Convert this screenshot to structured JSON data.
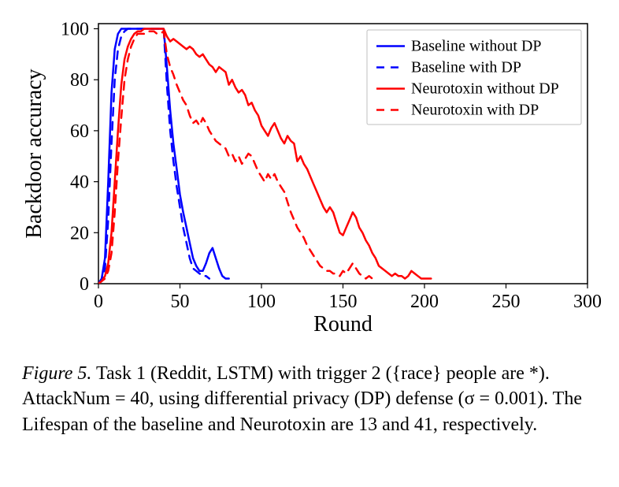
{
  "figure": {
    "type": "line",
    "background_color": "#ffffff",
    "plot_border_color": "#000000",
    "plot_border_width": 1.5,
    "x_axis": {
      "label": "Round",
      "label_fontsize": 28,
      "lim": [
        0,
        300
      ],
      "ticks": [
        0,
        50,
        100,
        150,
        200,
        250,
        300
      ],
      "tick_fontsize": 24
    },
    "y_axis": {
      "label": "Backdoor accuracy",
      "label_fontsize": 28,
      "lim": [
        0,
        102
      ],
      "ticks": [
        0,
        20,
        40,
        60,
        80,
        100
      ],
      "tick_fontsize": 24
    },
    "legend": {
      "position": "upper-right",
      "fontsize": 20,
      "border_color": "#bfbfbf",
      "items": [
        {
          "label": "Baseline without DP",
          "color": "#0000ff",
          "dash": "solid",
          "width": 2.5
        },
        {
          "label": "Baseline with DP",
          "color": "#0000ff",
          "dash": "dashed",
          "width": 2.5
        },
        {
          "label": "Neurotoxin without DP",
          "color": "#ff0000",
          "dash": "solid",
          "width": 2.5
        },
        {
          "label": "Neurotoxin with DP",
          "color": "#ff0000",
          "dash": "dashed",
          "width": 2.5
        }
      ]
    },
    "series": [
      {
        "name": "Baseline without DP",
        "color": "#0000ff",
        "dash": "solid",
        "width": 2.5,
        "points": [
          [
            0,
            0
          ],
          [
            2,
            2
          ],
          [
            4,
            10
          ],
          [
            6,
            40
          ],
          [
            8,
            75
          ],
          [
            10,
            92
          ],
          [
            12,
            98
          ],
          [
            14,
            100
          ],
          [
            16,
            100
          ],
          [
            18,
            100
          ],
          [
            20,
            100
          ],
          [
            22,
            100
          ],
          [
            24,
            100
          ],
          [
            26,
            100
          ],
          [
            28,
            100
          ],
          [
            30,
            100
          ],
          [
            32,
            100
          ],
          [
            34,
            100
          ],
          [
            36,
            100
          ],
          [
            38,
            100
          ],
          [
            40,
            100
          ],
          [
            42,
            85
          ],
          [
            44,
            68
          ],
          [
            46,
            55
          ],
          [
            48,
            45
          ],
          [
            50,
            35
          ],
          [
            52,
            28
          ],
          [
            54,
            22
          ],
          [
            56,
            16
          ],
          [
            58,
            10
          ],
          [
            60,
            7
          ],
          [
            62,
            5
          ],
          [
            64,
            5
          ],
          [
            66,
            8
          ],
          [
            68,
            12
          ],
          [
            70,
            14
          ],
          [
            72,
            10
          ],
          [
            74,
            6
          ],
          [
            76,
            3
          ],
          [
            78,
            2
          ],
          [
            80,
            2
          ]
        ]
      },
      {
        "name": "Baseline with DP",
        "color": "#0000ff",
        "dash": "dashed",
        "width": 2.5,
        "points": [
          [
            0,
            0
          ],
          [
            2,
            1
          ],
          [
            4,
            6
          ],
          [
            6,
            25
          ],
          [
            8,
            55
          ],
          [
            10,
            80
          ],
          [
            12,
            92
          ],
          [
            14,
            97
          ],
          [
            16,
            99
          ],
          [
            18,
            100
          ],
          [
            20,
            100
          ],
          [
            22,
            100
          ],
          [
            24,
            100
          ],
          [
            26,
            100
          ],
          [
            28,
            100
          ],
          [
            30,
            100
          ],
          [
            32,
            100
          ],
          [
            34,
            100
          ],
          [
            36,
            100
          ],
          [
            38,
            100
          ],
          [
            40,
            100
          ],
          [
            42,
            78
          ],
          [
            44,
            60
          ],
          [
            46,
            48
          ],
          [
            48,
            38
          ],
          [
            50,
            30
          ],
          [
            52,
            22
          ],
          [
            54,
            16
          ],
          [
            56,
            10
          ],
          [
            58,
            6
          ],
          [
            60,
            5
          ],
          [
            62,
            4
          ],
          [
            64,
            3
          ],
          [
            66,
            3
          ],
          [
            68,
            2
          ]
        ]
      },
      {
        "name": "Neurotoxin without DP",
        "color": "#ff0000",
        "dash": "solid",
        "width": 2.5,
        "points": [
          [
            0,
            0
          ],
          [
            2,
            1
          ],
          [
            4,
            3
          ],
          [
            6,
            8
          ],
          [
            8,
            20
          ],
          [
            10,
            40
          ],
          [
            12,
            60
          ],
          [
            14,
            78
          ],
          [
            16,
            88
          ],
          [
            18,
            93
          ],
          [
            20,
            96
          ],
          [
            22,
            98
          ],
          [
            24,
            99
          ],
          [
            26,
            99
          ],
          [
            28,
            100
          ],
          [
            30,
            100
          ],
          [
            32,
            100
          ],
          [
            34,
            100
          ],
          [
            36,
            100
          ],
          [
            38,
            100
          ],
          [
            40,
            100
          ],
          [
            42,
            97
          ],
          [
            44,
            95
          ],
          [
            46,
            96
          ],
          [
            48,
            95
          ],
          [
            50,
            94
          ],
          [
            52,
            93
          ],
          [
            54,
            92
          ],
          [
            56,
            93
          ],
          [
            58,
            92
          ],
          [
            60,
            90
          ],
          [
            62,
            89
          ],
          [
            64,
            90
          ],
          [
            66,
            88
          ],
          [
            68,
            86
          ],
          [
            70,
            85
          ],
          [
            72,
            83
          ],
          [
            74,
            85
          ],
          [
            76,
            84
          ],
          [
            78,
            83
          ],
          [
            80,
            78
          ],
          [
            82,
            80
          ],
          [
            84,
            77
          ],
          [
            86,
            75
          ],
          [
            88,
            76
          ],
          [
            90,
            74
          ],
          [
            92,
            70
          ],
          [
            94,
            71
          ],
          [
            96,
            68
          ],
          [
            98,
            66
          ],
          [
            100,
            62
          ],
          [
            102,
            60
          ],
          [
            104,
            58
          ],
          [
            106,
            61
          ],
          [
            108,
            63
          ],
          [
            110,
            60
          ],
          [
            112,
            57
          ],
          [
            114,
            55
          ],
          [
            116,
            58
          ],
          [
            118,
            56
          ],
          [
            120,
            55
          ],
          [
            122,
            48
          ],
          [
            124,
            50
          ],
          [
            126,
            47
          ],
          [
            128,
            45
          ],
          [
            130,
            42
          ],
          [
            132,
            39
          ],
          [
            134,
            36
          ],
          [
            136,
            33
          ],
          [
            138,
            30
          ],
          [
            140,
            28
          ],
          [
            142,
            30
          ],
          [
            144,
            28
          ],
          [
            146,
            24
          ],
          [
            148,
            20
          ],
          [
            150,
            19
          ],
          [
            152,
            22
          ],
          [
            154,
            25
          ],
          [
            156,
            28
          ],
          [
            158,
            26
          ],
          [
            160,
            22
          ],
          [
            162,
            20
          ],
          [
            164,
            17
          ],
          [
            166,
            15
          ],
          [
            168,
            12
          ],
          [
            170,
            10
          ],
          [
            172,
            7
          ],
          [
            174,
            6
          ],
          [
            176,
            5
          ],
          [
            178,
            4
          ],
          [
            180,
            3
          ],
          [
            182,
            4
          ],
          [
            184,
            3
          ],
          [
            186,
            3
          ],
          [
            188,
            2
          ],
          [
            190,
            3
          ],
          [
            192,
            5
          ],
          [
            194,
            4
          ],
          [
            196,
            3
          ],
          [
            198,
            2
          ],
          [
            200,
            2
          ],
          [
            202,
            2
          ],
          [
            204,
            2
          ]
        ]
      },
      {
        "name": "Neurotoxin with DP",
        "color": "#ff0000",
        "dash": "dashed",
        "width": 2.5,
        "points": [
          [
            0,
            0
          ],
          [
            2,
            1
          ],
          [
            4,
            2
          ],
          [
            6,
            5
          ],
          [
            8,
            12
          ],
          [
            10,
            28
          ],
          [
            12,
            48
          ],
          [
            14,
            65
          ],
          [
            16,
            80
          ],
          [
            18,
            88
          ],
          [
            20,
            93
          ],
          [
            22,
            96
          ],
          [
            24,
            98
          ],
          [
            26,
            98
          ],
          [
            28,
            98
          ],
          [
            30,
            99
          ],
          [
            32,
            99
          ],
          [
            34,
            99
          ],
          [
            36,
            98
          ],
          [
            38,
            98
          ],
          [
            40,
            99
          ],
          [
            42,
            90
          ],
          [
            44,
            85
          ],
          [
            46,
            82
          ],
          [
            48,
            78
          ],
          [
            50,
            75
          ],
          [
            52,
            72
          ],
          [
            54,
            70
          ],
          [
            56,
            66
          ],
          [
            58,
            63
          ],
          [
            60,
            64
          ],
          [
            62,
            62
          ],
          [
            64,
            65
          ],
          [
            66,
            63
          ],
          [
            68,
            60
          ],
          [
            70,
            58
          ],
          [
            72,
            56
          ],
          [
            74,
            55
          ],
          [
            76,
            54
          ],
          [
            78,
            53
          ],
          [
            80,
            50
          ],
          [
            82,
            51
          ],
          [
            84,
            48
          ],
          [
            86,
            50
          ],
          [
            88,
            47
          ],
          [
            90,
            49
          ],
          [
            92,
            51
          ],
          [
            94,
            50
          ],
          [
            96,
            47
          ],
          [
            98,
            44
          ],
          [
            100,
            42
          ],
          [
            102,
            40
          ],
          [
            104,
            43
          ],
          [
            106,
            41
          ],
          [
            108,
            43
          ],
          [
            110,
            40
          ],
          [
            112,
            38
          ],
          [
            114,
            36
          ],
          [
            116,
            32
          ],
          [
            118,
            28
          ],
          [
            120,
            25
          ],
          [
            122,
            22
          ],
          [
            124,
            20
          ],
          [
            126,
            18
          ],
          [
            128,
            15
          ],
          [
            130,
            13
          ],
          [
            132,
            11
          ],
          [
            134,
            9
          ],
          [
            136,
            7
          ],
          [
            138,
            6
          ],
          [
            140,
            5
          ],
          [
            142,
            5
          ],
          [
            144,
            4
          ],
          [
            146,
            4
          ],
          [
            148,
            3
          ],
          [
            150,
            5
          ],
          [
            152,
            4
          ],
          [
            154,
            6
          ],
          [
            156,
            8
          ],
          [
            158,
            6
          ],
          [
            160,
            4
          ],
          [
            162,
            3
          ],
          [
            164,
            2
          ],
          [
            166,
            3
          ],
          [
            168,
            2
          ],
          [
            170,
            2
          ]
        ]
      }
    ]
  },
  "caption": {
    "prefix_italic": "Figure 5.",
    "text_part1": " Task 1 (Reddit, LSTM) with trigger 2 ({race} people are *). AttackNum = 40, using differential privacy (DP) defense (",
    "sigma": "σ = 0.001",
    "text_part2": "). The Lifespan of the baseline and Neurotoxin are 13 and 41, respectively.",
    "fontsize": 24
  }
}
